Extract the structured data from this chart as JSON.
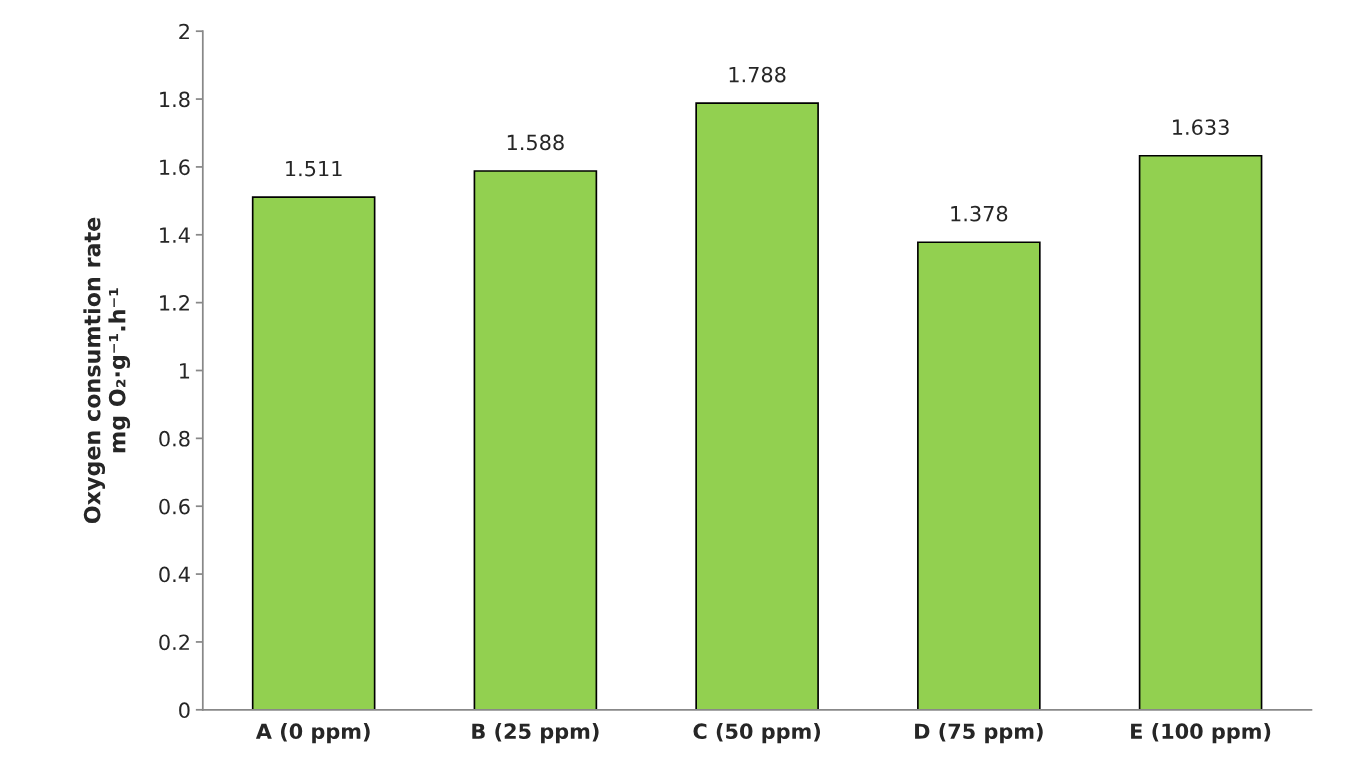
{
  "chart_data": {
    "type": "bar",
    "ylabel": "Oxygen consumtion rate\nmg O₂·g⁻¹.h⁻¹",
    "categories": [
      "A (0 ppm)",
      "B (25 ppm)",
      "C (50 ppm)",
      "D (75 ppm)",
      "E (100 ppm)"
    ],
    "values": [
      1.511,
      1.588,
      1.788,
      1.378,
      1.633
    ],
    "color": "#92d050",
    "ylim": [
      0,
      2
    ],
    "yticks": [
      0,
      0.2,
      0.4,
      0.6,
      0.8,
      1,
      1.2,
      1.4,
      1.6,
      1.8,
      2
    ],
    "grid": false,
    "data_labels": true
  }
}
